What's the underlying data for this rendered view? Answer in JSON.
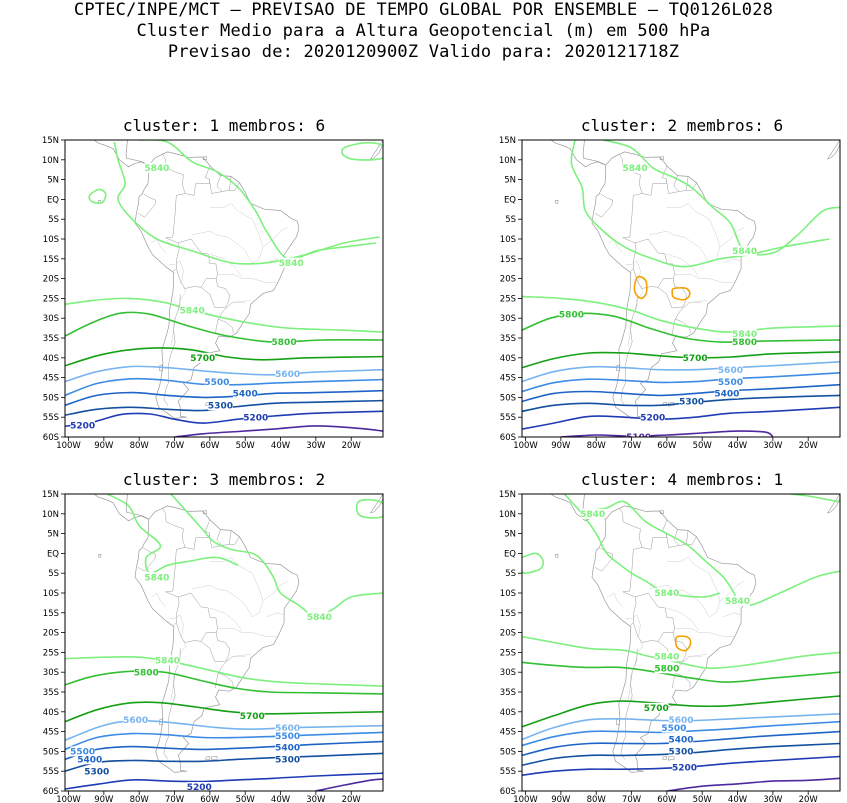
{
  "header": {
    "line1": "CPTEC/INPE/MCT – PREVISAO DE TEMPO GLOBAL POR ENSEMBLE – TQ0126L028",
    "line2": "Cluster Medio para a Altura Geopotencial (m) em 500 hPa",
    "line3": "Previsao de: 2020120900Z    Valido para: 2020121718Z"
  },
  "axes": {
    "lat_labels": [
      "15N",
      "10N",
      "5N",
      "EQ",
      "5S",
      "10S",
      "15S",
      "20S",
      "25S",
      "30S",
      "35S",
      "40S",
      "45S",
      "50S",
      "55S",
      "60S"
    ],
    "lon_labels": [
      "100W",
      "90W",
      "80W",
      "70W",
      "60W",
      "50W",
      "40W",
      "30W",
      "20W"
    ]
  },
  "contour_colors": {
    "5840": "#7df07d",
    "5800": "#32c032",
    "5700": "#14a014",
    "5600": "#78b4f0",
    "5500": "#3c8ce6",
    "5400": "#1e64c8",
    "5300": "#1450a0",
    "5200": "#1e3cb4",
    "5100": "#5028a0",
    "anomaly": "#f5a000",
    "land": "#9a9a9a"
  },
  "panels": [
    {
      "title": "cluster:  1   membros:  6",
      "labels": [
        {
          "text": "5840",
          "lon": -75,
          "lat": 8
        },
        {
          "text": "5840",
          "lon": -37,
          "lat": -16
        },
        {
          "text": "5840",
          "lon": -65,
          "lat": -28
        },
        {
          "text": "5800",
          "lon": -39,
          "lat": -36
        },
        {
          "text": "5700",
          "lon": -62,
          "lat": -40
        },
        {
          "text": "5600",
          "lon": -38,
          "lat": -44
        },
        {
          "text": "5500",
          "lon": -58,
          "lat": -46
        },
        {
          "text": "5400",
          "lon": -50,
          "lat": -49
        },
        {
          "text": "5300",
          "lon": -57,
          "lat": -52
        },
        {
          "text": "5200",
          "lon": -47,
          "lat": -55
        },
        {
          "text": "5200",
          "lon": -96,
          "lat": -57
        }
      ]
    },
    {
      "title": "cluster:  2   membros:  6",
      "labels": [
        {
          "text": "5840",
          "lon": -69,
          "lat": 8
        },
        {
          "text": "5840",
          "lon": -38,
          "lat": -13
        },
        {
          "text": "5840",
          "lon": -38,
          "lat": -34
        },
        {
          "text": "5800",
          "lon": -87,
          "lat": -29
        },
        {
          "text": "5800",
          "lon": -38,
          "lat": -36
        },
        {
          "text": "5700",
          "lon": -52,
          "lat": -40
        },
        {
          "text": "5600",
          "lon": -42,
          "lat": -43
        },
        {
          "text": "5500",
          "lon": -42,
          "lat": -46
        },
        {
          "text": "5400",
          "lon": -43,
          "lat": -49
        },
        {
          "text": "5300",
          "lon": -53,
          "lat": -51
        },
        {
          "text": "5200",
          "lon": -64,
          "lat": -55
        },
        {
          "text": "5100",
          "lon": -68,
          "lat": -60
        }
      ]
    },
    {
      "title": "cluster:  3   membros:  2",
      "labels": [
        {
          "text": "5840",
          "lon": -75,
          "lat": -6
        },
        {
          "text": "5840",
          "lon": -29,
          "lat": -16
        },
        {
          "text": "5840",
          "lon": -72,
          "lat": -27
        },
        {
          "text": "5800",
          "lon": -78,
          "lat": -30
        },
        {
          "text": "5700",
          "lon": -48,
          "lat": -41
        },
        {
          "text": "5600",
          "lon": -81,
          "lat": -42
        },
        {
          "text": "5600",
          "lon": -38,
          "lat": -44
        },
        {
          "text": "5500",
          "lon": -38,
          "lat": -46
        },
        {
          "text": "5500",
          "lon": -96,
          "lat": -50
        },
        {
          "text": "5400",
          "lon": -38,
          "lat": -49
        },
        {
          "text": "5400",
          "lon": -94,
          "lat": -52
        },
        {
          "text": "5300",
          "lon": -38,
          "lat": -52
        },
        {
          "text": "5300",
          "lon": -92,
          "lat": -55
        },
        {
          "text": "5200",
          "lon": -63,
          "lat": -59
        }
      ]
    },
    {
      "title": "cluster:  4   membros:  1",
      "labels": [
        {
          "text": "5840",
          "lon": -81,
          "lat": 10
        },
        {
          "text": "5840",
          "lon": -60,
          "lat": -10
        },
        {
          "text": "5840",
          "lon": -40,
          "lat": -12
        },
        {
          "text": "5840",
          "lon": -60,
          "lat": -26
        },
        {
          "text": "5800",
          "lon": -60,
          "lat": -29
        },
        {
          "text": "5700",
          "lon": -63,
          "lat": -39
        },
        {
          "text": "5600",
          "lon": -56,
          "lat": -42
        },
        {
          "text": "5500",
          "lon": -58,
          "lat": -44
        },
        {
          "text": "5400",
          "lon": -56,
          "lat": -47
        },
        {
          "text": "5300",
          "lon": -56,
          "lat": -50
        },
        {
          "text": "5200",
          "lon": -55,
          "lat": -54
        }
      ]
    }
  ]
}
